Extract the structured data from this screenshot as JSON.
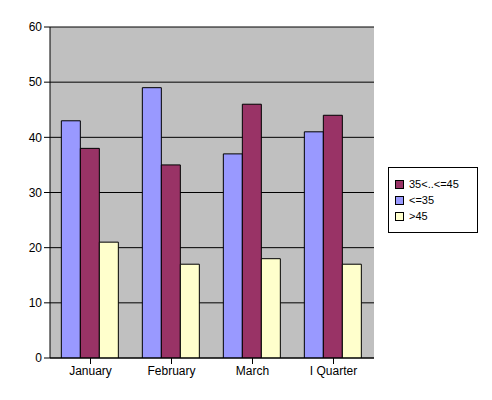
{
  "chart_data": {
    "type": "bar",
    "categories": [
      "January",
      "February",
      "March",
      "I Quarter"
    ],
    "series": [
      {
        "name": "<=35",
        "color": "#9999FF",
        "values": [
          43,
          49,
          37,
          41
        ]
      },
      {
        "name": "35<..<=45",
        "color": "#993366",
        "values": [
          38,
          35,
          46,
          44
        ]
      },
      {
        "name": ">45",
        "color": "#FFFFCC",
        "values": [
          21,
          17,
          18,
          17
        ]
      }
    ],
    "ylim": [
      0,
      60
    ],
    "yticks": [
      0,
      10,
      20,
      30,
      40,
      50,
      60
    ],
    "grid": true,
    "legend": "right"
  }
}
